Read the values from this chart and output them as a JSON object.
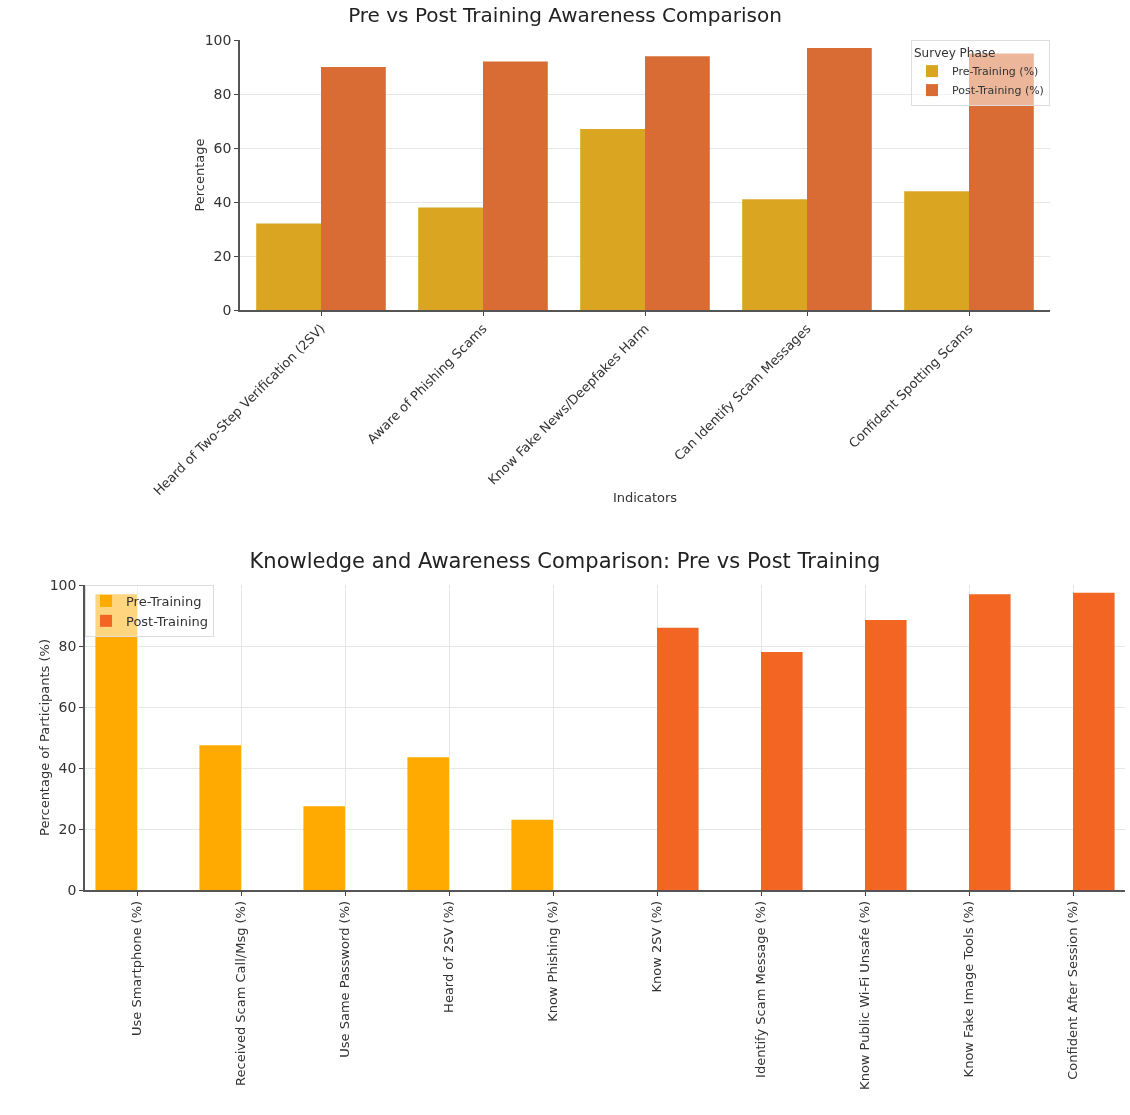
{
  "chart_data": [
    {
      "type": "bar",
      "title": "Pre vs Post Training Awareness Comparison",
      "xlabel": "Indicators",
      "ylabel": "Percentage",
      "legend_title": "Survey Phase",
      "categories": [
        "Heard of Two-Step Verification (2SV)",
        "Aware of Phishing Scams",
        "Know Fake News/Deepfakes Harm",
        "Can Identify Scam Messages",
        "Confident Spotting Scams"
      ],
      "series": [
        {
          "name": "Pre-Training (%)",
          "color": "#daa520",
          "values": [
            32,
            38,
            67,
            41,
            44
          ]
        },
        {
          "name": "Post-Training (%)",
          "color": "#d96c35",
          "values": [
            90,
            92,
            94,
            97,
            95
          ]
        }
      ],
      "ylim": [
        0,
        100
      ],
      "yticks": [
        0,
        20,
        40,
        60,
        80,
        100
      ],
      "grid": "y",
      "legend": "top right"
    },
    {
      "type": "bar",
      "title": "Knowledge and Awareness Comparison: Pre vs Post Training",
      "ylabel": "Percentage of Participants (%)",
      "categories": [
        "Use Smartphone (%)",
        "Received Scam Call/Msg (%)",
        "Use Same Password (%)",
        "Heard of 2SV (%)",
        "Know Phishing (%)",
        "Know 2SV (%)",
        "Identify Scam Message (%)",
        "Know Public Wi-Fi Unsafe (%)",
        "Know Fake Image Tools (%)",
        "Confident After Session (%)"
      ],
      "series": [
        {
          "name": "Pre-Training",
          "color": "#ffaa00",
          "values": [
            97,
            47.5,
            27.5,
            43.5,
            23,
            null,
            null,
            null,
            null,
            null
          ]
        },
        {
          "name": "Post-Training",
          "color": "#f26522",
          "values": [
            null,
            null,
            null,
            null,
            null,
            86,
            78,
            88.5,
            97,
            97.5
          ]
        }
      ],
      "ylim": [
        0,
        100
      ],
      "yticks": [
        0,
        20,
        40,
        60,
        80,
        100
      ],
      "grid": true,
      "legend": "top left"
    }
  ]
}
